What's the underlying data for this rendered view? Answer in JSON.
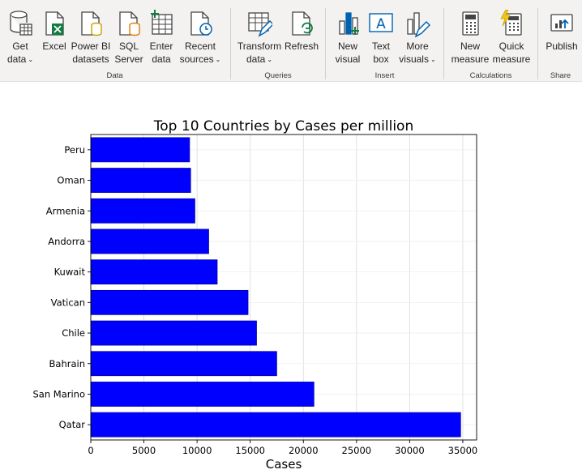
{
  "ribbon": {
    "groups": [
      {
        "label": "Data"
      },
      {
        "label": "Queries"
      },
      {
        "label": "Insert"
      },
      {
        "label": "Calculations"
      },
      {
        "label": "Share"
      }
    ],
    "buttons": {
      "get_data": {
        "line1": "Get",
        "line2": "data"
      },
      "excel": {
        "line1": "Excel"
      },
      "powerbi": {
        "line1": "Power BI",
        "line2": "datasets"
      },
      "sql": {
        "line1": "SQL",
        "line2": "Server"
      },
      "enter": {
        "line1": "Enter",
        "line2": "data"
      },
      "recent": {
        "line1": "Recent",
        "line2": "sources"
      },
      "transform": {
        "line1": "Transform",
        "line2": "data"
      },
      "refresh": {
        "line1": "Refresh"
      },
      "new_visual": {
        "line1": "New",
        "line2": "visual"
      },
      "text_box": {
        "line1": "Text",
        "line2": "box"
      },
      "more_visuals": {
        "line1": "More",
        "line2": "visuals"
      },
      "new_measure": {
        "line1": "New",
        "line2": "measure"
      },
      "quick_measure": {
        "line1": "Quick",
        "line2": "measure"
      },
      "publish": {
        "line1": "Publish"
      }
    },
    "chevron": "⌄"
  },
  "chart_data": {
    "type": "bar",
    "orientation": "horizontal",
    "title": "Top 10 Countries by Cases per million",
    "xlabel": "Cases",
    "ylabel": "",
    "categories": [
      "Qatar",
      "San Marino",
      "Bahrain",
      "Chile",
      "Vatican",
      "Kuwait",
      "Andorra",
      "Armenia",
      "Oman",
      "Peru"
    ],
    "values": [
      34800,
      21000,
      17500,
      15600,
      14800,
      11900,
      11100,
      9800,
      9400,
      9300
    ],
    "xlim": [
      0,
      36300
    ],
    "xticks": [
      0,
      5000,
      10000,
      15000,
      20000,
      25000,
      30000,
      35000
    ],
    "grid": true,
    "bar_color": "#0000ff"
  }
}
